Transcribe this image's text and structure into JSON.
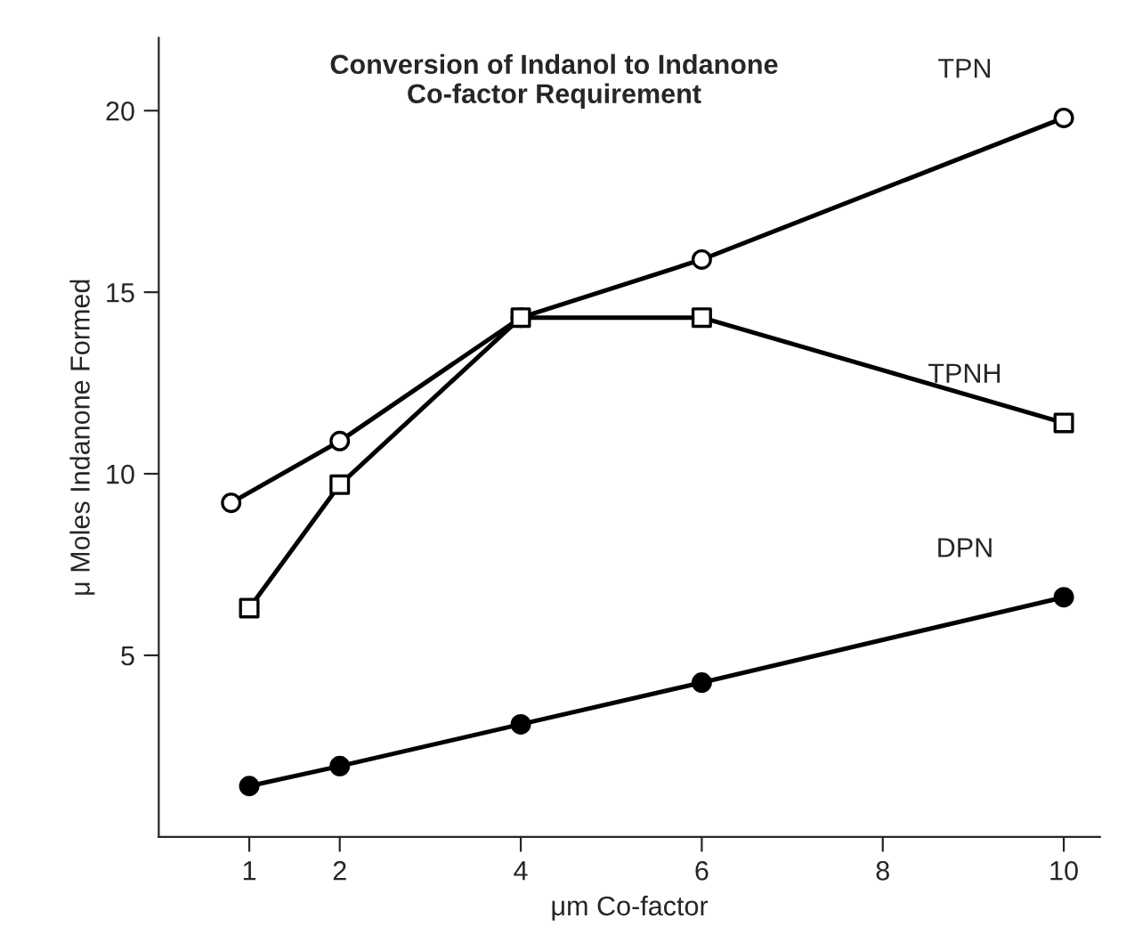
{
  "chart_data": {
    "type": "line",
    "title": "Conversion of Indanol to Indanone\nCo-factor Requirement",
    "xlabel": "μm Co-factor",
    "ylabel": "μ Moles Indanone Formed",
    "xlim": [
      0,
      10.4
    ],
    "xticks": [
      1,
      2,
      4,
      6,
      8,
      10
    ],
    "ylim": [
      0,
      22
    ],
    "yticks": [
      5,
      10,
      15,
      20
    ],
    "grid": false,
    "legend": false,
    "line_style": "solid",
    "series": [
      {
        "name": "TPN",
        "color": "#000000",
        "marker": "circle",
        "colors": [
          "#ffffff",
          "#ffffff",
          "#ffffff",
          "#ffffff",
          "#ffffff"
        ],
        "x": [
          0.8,
          2,
          4,
          6,
          10
        ],
        "values": [
          9.2,
          10.9,
          14.3,
          15.9,
          19.8
        ]
      },
      {
        "name": "TPNH",
        "color": "#000000",
        "marker": "square",
        "colors": [
          "#ffffff",
          "#ffffff",
          "#ffffff",
          "#ffffff",
          "#ffffff"
        ],
        "x": [
          1,
          2,
          4,
          6,
          10
        ],
        "values": [
          6.3,
          9.7,
          14.3,
          14.3,
          11.4
        ]
      },
      {
        "name": "DPN",
        "color": "#000000",
        "marker": "circle",
        "x": [
          1,
          2,
          4,
          6,
          10
        ],
        "values": [
          1.4,
          1.95,
          3.1,
          4.25,
          6.6
        ]
      }
    ]
  }
}
